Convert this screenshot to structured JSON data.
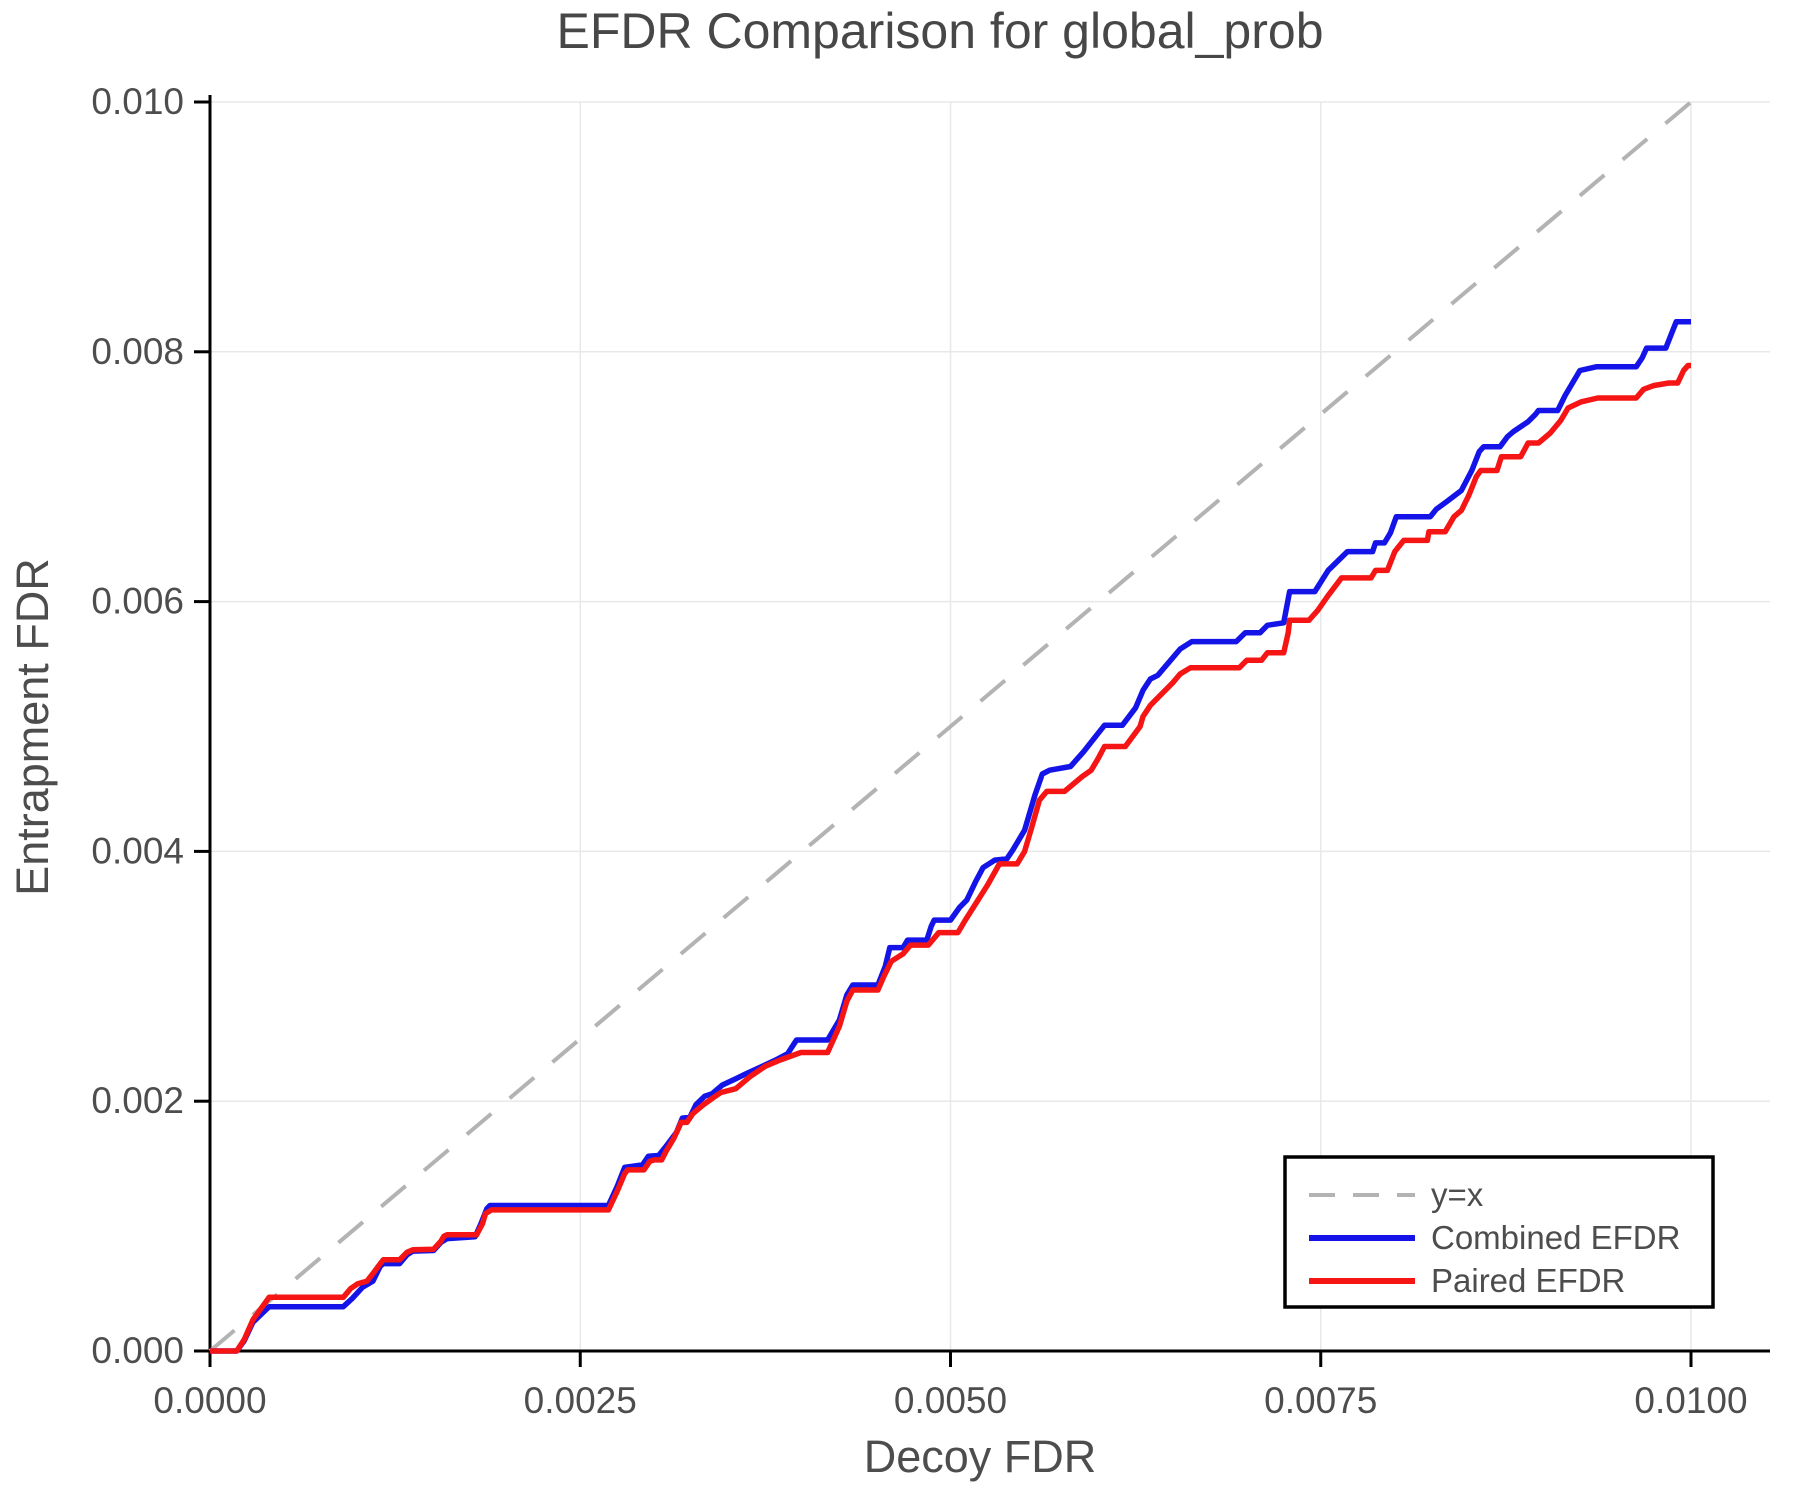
{
  "page": {
    "background": "#ffffff"
  },
  "chart_data": {
    "type": "line",
    "title": "EFDR Comparison for global_prob",
    "xlabel": "Decoy FDR",
    "ylabel": "Entrapment FDR",
    "axis_unit_scale": 0.0001,
    "xlim": [
      0,
      100
    ],
    "ylim": [
      0,
      100
    ],
    "grid": true,
    "x_ticks": {
      "values": [
        0,
        25,
        50,
        75,
        100
      ],
      "labels": [
        "0.0000",
        "0.0025",
        "0.0050",
        "0.0075",
        "0.0100"
      ]
    },
    "y_ticks": {
      "values": [
        0,
        20,
        40,
        60,
        80,
        100
      ],
      "labels": [
        "0.000",
        "0.002",
        "0.004",
        "0.006",
        "0.008",
        "0.010"
      ]
    },
    "colors": {
      "grid": "#e8e8e8",
      "axis": "#000000",
      "text": "#4d4d4d",
      "title_text": "#474747",
      "reference_line": "#b3b3b3",
      "combined": "#1414e8",
      "paired": "#f51515",
      "legend_border": "#000000",
      "legend_background": "#ffffff"
    },
    "legend": {
      "position": "lower-right",
      "entries": [
        "y=x",
        "Combined EFDR",
        "Paired EFDR"
      ]
    },
    "series": [
      {
        "name": "y=x",
        "style": "dashed",
        "color_key": "reference_line",
        "points": [
          [
            0,
            0
          ],
          [
            100,
            100
          ]
        ]
      },
      {
        "name": "Combined EFDR",
        "style": "solid",
        "color_key": "combined",
        "points": [
          [
            0,
            0
          ],
          [
            1.8,
            0
          ],
          [
            2.3,
            0.8
          ],
          [
            2.9,
            2.3
          ],
          [
            4.0,
            3.55
          ],
          [
            9.0,
            3.55
          ],
          [
            9.6,
            4.2
          ],
          [
            10.3,
            5.1
          ],
          [
            11.0,
            5.6
          ],
          [
            11.5,
            6.8
          ],
          [
            11.7,
            7.0
          ],
          [
            12.8,
            7.0
          ],
          [
            13.3,
            7.7
          ],
          [
            13.7,
            8.0
          ],
          [
            15.1,
            8.05
          ],
          [
            15.6,
            8.7
          ],
          [
            16.0,
            9.0
          ],
          [
            17.9,
            9.15
          ],
          [
            18.3,
            10.2
          ],
          [
            18.7,
            11.4
          ],
          [
            18.9,
            11.65
          ],
          [
            26.9,
            11.65
          ],
          [
            27.5,
            13.2
          ],
          [
            28.0,
            14.7
          ],
          [
            29.2,
            14.9
          ],
          [
            29.6,
            15.6
          ],
          [
            30.3,
            15.65
          ],
          [
            30.8,
            16.4
          ],
          [
            31.5,
            17.5
          ],
          [
            31.9,
            18.65
          ],
          [
            32.4,
            18.7
          ],
          [
            32.8,
            19.7
          ],
          [
            33.4,
            20.4
          ],
          [
            33.9,
            20.6
          ],
          [
            34.6,
            21.3
          ],
          [
            35.5,
            21.8
          ],
          [
            36.2,
            22.2
          ],
          [
            37.3,
            22.8
          ],
          [
            38.2,
            23.3
          ],
          [
            39.0,
            23.8
          ],
          [
            39.6,
            24.9
          ],
          [
            41.7,
            24.9
          ],
          [
            42.5,
            26.5
          ],
          [
            43.0,
            28.5
          ],
          [
            43.4,
            29.3
          ],
          [
            45.1,
            29.3
          ],
          [
            45.6,
            30.8
          ],
          [
            45.9,
            32.3
          ],
          [
            46.8,
            32.3
          ],
          [
            47.1,
            32.9
          ],
          [
            48.4,
            32.9
          ],
          [
            48.7,
            34.0
          ],
          [
            48.9,
            34.5
          ],
          [
            50.0,
            34.5
          ],
          [
            50.6,
            35.5
          ],
          [
            51.1,
            36.1
          ],
          [
            51.7,
            37.6
          ],
          [
            52.2,
            38.7
          ],
          [
            53.0,
            39.3
          ],
          [
            53.8,
            39.4
          ],
          [
            54.2,
            40.1
          ],
          [
            55.0,
            41.7
          ],
          [
            55.7,
            44.5
          ],
          [
            56.2,
            46.2
          ],
          [
            56.7,
            46.5
          ],
          [
            58.1,
            46.8
          ],
          [
            59.0,
            48.0
          ],
          [
            60.0,
            49.5
          ],
          [
            60.4,
            50.1
          ],
          [
            61.6,
            50.1
          ],
          [
            62.5,
            51.5
          ],
          [
            63.0,
            52.9
          ],
          [
            63.5,
            53.8
          ],
          [
            64.0,
            54.1
          ],
          [
            65.0,
            55.5
          ],
          [
            65.5,
            56.2
          ],
          [
            66.3,
            56.8
          ],
          [
            69.3,
            56.8
          ],
          [
            69.9,
            57.5
          ],
          [
            70.9,
            57.5
          ],
          [
            71.4,
            58.1
          ],
          [
            72.5,
            58.3
          ],
          [
            72.9,
            60.8
          ],
          [
            74.6,
            60.8
          ],
          [
            75.5,
            62.5
          ],
          [
            76.8,
            64.0
          ],
          [
            78.5,
            64.0
          ],
          [
            78.7,
            64.7
          ],
          [
            79.3,
            64.7
          ],
          [
            79.7,
            65.5
          ],
          [
            80.1,
            66.8
          ],
          [
            82.4,
            66.8
          ],
          [
            82.8,
            67.4
          ],
          [
            83.5,
            68.0
          ],
          [
            84.5,
            68.9
          ],
          [
            85.2,
            70.5
          ],
          [
            85.7,
            72.0
          ],
          [
            86.0,
            72.4
          ],
          [
            87.1,
            72.4
          ],
          [
            87.6,
            73.2
          ],
          [
            88.0,
            73.6
          ],
          [
            88.5,
            74.0
          ],
          [
            89.0,
            74.4
          ],
          [
            89.5,
            75.0
          ],
          [
            89.7,
            75.3
          ],
          [
            91.0,
            75.3
          ],
          [
            91.5,
            76.5
          ],
          [
            92.0,
            77.5
          ],
          [
            92.5,
            78.5
          ],
          [
            93.6,
            78.8
          ],
          [
            96.3,
            78.8
          ],
          [
            96.7,
            79.5
          ],
          [
            97.0,
            80.3
          ],
          [
            98.3,
            80.3
          ],
          [
            98.7,
            81.5
          ],
          [
            99.0,
            82.4
          ],
          [
            100,
            82.4
          ]
        ]
      },
      {
        "name": "Paired EFDR",
        "style": "solid",
        "color_key": "paired",
        "points": [
          [
            0,
            0
          ],
          [
            1.8,
            0
          ],
          [
            2.3,
            0.9
          ],
          [
            2.9,
            2.5
          ],
          [
            4.0,
            4.3
          ],
          [
            9.0,
            4.3
          ],
          [
            9.5,
            5.0
          ],
          [
            10.0,
            5.4
          ],
          [
            10.6,
            5.6
          ],
          [
            11.0,
            6.2
          ],
          [
            11.5,
            7.0
          ],
          [
            11.7,
            7.3
          ],
          [
            12.8,
            7.3
          ],
          [
            13.3,
            7.9
          ],
          [
            13.7,
            8.1
          ],
          [
            15.1,
            8.15
          ],
          [
            15.6,
            8.8
          ],
          [
            15.8,
            9.2
          ],
          [
            16.0,
            9.3
          ],
          [
            18.0,
            9.3
          ],
          [
            18.4,
            10.2
          ],
          [
            18.6,
            11.0
          ],
          [
            19.0,
            11.3
          ],
          [
            26.9,
            11.3
          ],
          [
            27.5,
            12.8
          ],
          [
            28.0,
            14.2
          ],
          [
            28.2,
            14.5
          ],
          [
            29.3,
            14.5
          ],
          [
            29.7,
            15.2
          ],
          [
            30.0,
            15.3
          ],
          [
            30.5,
            15.3
          ],
          [
            30.8,
            16.0
          ],
          [
            31.3,
            17.0
          ],
          [
            31.7,
            18.0
          ],
          [
            31.8,
            18.3
          ],
          [
            32.2,
            18.3
          ],
          [
            32.6,
            19.0
          ],
          [
            33.3,
            19.7
          ],
          [
            34.0,
            20.3
          ],
          [
            34.5,
            20.7
          ],
          [
            35.5,
            21.0
          ],
          [
            36.5,
            22.0
          ],
          [
            37.5,
            22.8
          ],
          [
            38.5,
            23.3
          ],
          [
            39.9,
            23.9
          ],
          [
            41.7,
            23.9
          ],
          [
            42.5,
            26.0
          ],
          [
            43.0,
            28.0
          ],
          [
            43.4,
            28.9
          ],
          [
            45.1,
            28.9
          ],
          [
            45.5,
            30.0
          ],
          [
            46.0,
            31.2
          ],
          [
            46.8,
            31.8
          ],
          [
            47.3,
            32.5
          ],
          [
            48.5,
            32.5
          ],
          [
            49.0,
            33.2
          ],
          [
            49.2,
            33.5
          ],
          [
            50.5,
            33.5
          ],
          [
            51.0,
            34.5
          ],
          [
            51.8,
            36.0
          ],
          [
            52.5,
            37.3
          ],
          [
            53.3,
            39.0
          ],
          [
            54.5,
            39.0
          ],
          [
            55.0,
            40.0
          ],
          [
            55.5,
            42.0
          ],
          [
            56.0,
            44.1
          ],
          [
            56.5,
            44.8
          ],
          [
            57.7,
            44.8
          ],
          [
            58.9,
            46.0
          ],
          [
            59.5,
            46.5
          ],
          [
            60.0,
            47.5
          ],
          [
            60.4,
            48.4
          ],
          [
            61.8,
            48.4
          ],
          [
            62.8,
            50.0
          ],
          [
            63.0,
            50.8
          ],
          [
            63.5,
            51.7
          ],
          [
            64.0,
            52.3
          ],
          [
            65.0,
            53.5
          ],
          [
            65.5,
            54.2
          ],
          [
            66.2,
            54.7
          ],
          [
            69.5,
            54.7
          ],
          [
            70.0,
            55.3
          ],
          [
            71.0,
            55.3
          ],
          [
            71.4,
            55.9
          ],
          [
            72.5,
            55.9
          ],
          [
            72.8,
            57.5
          ],
          [
            72.9,
            58.5
          ],
          [
            74.2,
            58.5
          ],
          [
            74.8,
            59.3
          ],
          [
            75.5,
            60.5
          ],
          [
            76.4,
            61.9
          ],
          [
            78.4,
            61.9
          ],
          [
            78.7,
            62.5
          ],
          [
            79.5,
            62.5
          ],
          [
            80.0,
            64.0
          ],
          [
            80.6,
            64.9
          ],
          [
            82.2,
            64.9
          ],
          [
            82.3,
            65.6
          ],
          [
            83.4,
            65.6
          ],
          [
            84.0,
            66.8
          ],
          [
            84.5,
            67.3
          ],
          [
            85.0,
            68.5
          ],
          [
            85.5,
            70.0
          ],
          [
            85.8,
            70.5
          ],
          [
            86.9,
            70.5
          ],
          [
            87.2,
            71.6
          ],
          [
            88.5,
            71.6
          ],
          [
            89.0,
            72.7
          ],
          [
            89.7,
            72.7
          ],
          [
            90.5,
            73.5
          ],
          [
            91.2,
            74.5
          ],
          [
            91.7,
            75.5
          ],
          [
            92.6,
            76.0
          ],
          [
            93.7,
            76.3
          ],
          [
            96.3,
            76.3
          ],
          [
            96.8,
            77.0
          ],
          [
            97.5,
            77.3
          ],
          [
            98.5,
            77.5
          ],
          [
            99.1,
            77.5
          ],
          [
            99.5,
            78.5
          ],
          [
            99.8,
            78.9
          ],
          [
            100,
            78.9
          ]
        ]
      }
    ]
  }
}
